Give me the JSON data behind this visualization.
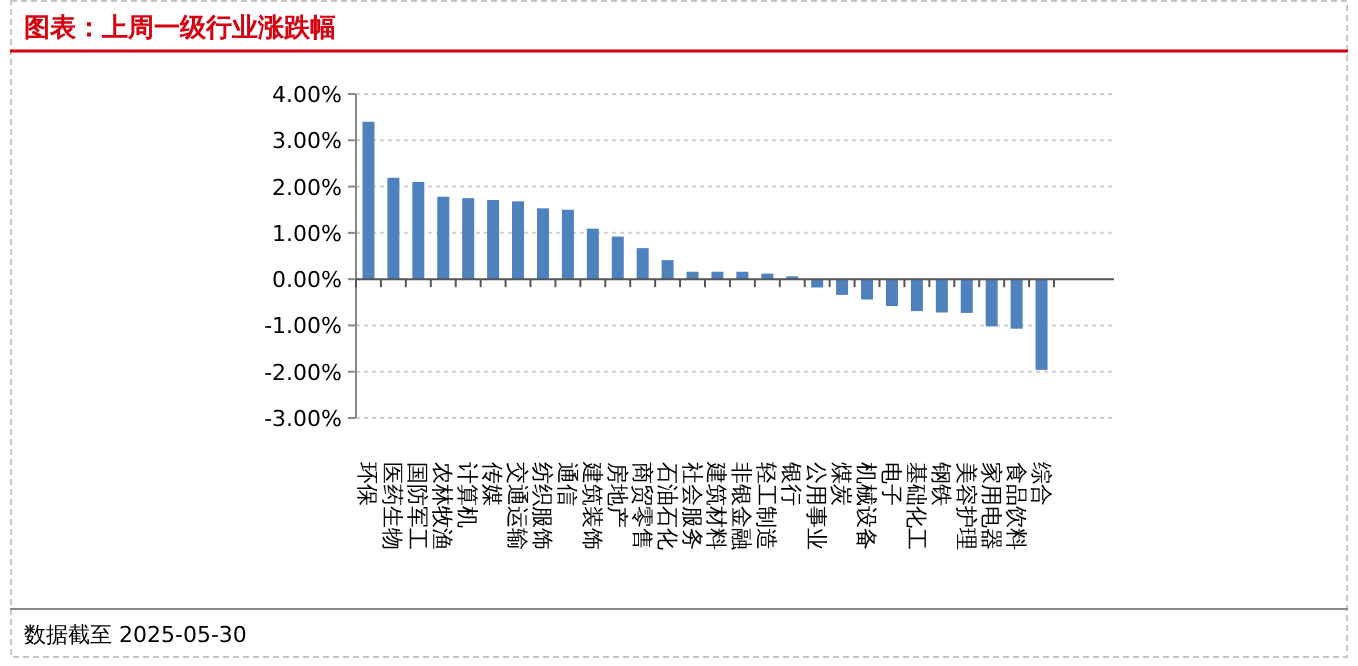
{
  "chart_data": {
    "type": "bar",
    "title": "图表：上周一级行业涨跌幅",
    "categories": [
      "环保",
      "医药生物",
      "国防军工",
      "农林牧渔",
      "计算机",
      "传媒",
      "交通运输",
      "纺织服饰",
      "通信",
      "建筑装饰",
      "房地产",
      "商贸零售",
      "石油石化",
      "社会服务",
      "建筑材料",
      "非银金融",
      "轻工制造",
      "银行",
      "公用事业",
      "煤炭",
      "机械设备",
      "电子",
      "基础化工",
      "钢铁",
      "美容护理",
      "家用电器",
      "食品饮料",
      "综合"
    ],
    "values": [
      3.4,
      2.19,
      2.1,
      1.78,
      1.75,
      1.71,
      1.68,
      1.53,
      1.5,
      1.09,
      0.92,
      0.67,
      0.41,
      0.16,
      0.16,
      0.16,
      0.12,
      0.06,
      -0.18,
      -0.34,
      -0.44,
      -0.58,
      -0.69,
      -0.72,
      -0.73,
      -1.02,
      -1.07,
      -1.96
    ],
    "color": "#4f81bd",
    "ylim": [
      -3,
      4
    ],
    "yticks": [
      {
        "value": -3,
        "label": "-3.00%"
      },
      {
        "value": -2,
        "label": "-2.00%"
      },
      {
        "value": -1,
        "label": "-1.00%"
      },
      {
        "value": 0,
        "label": "0.00%"
      },
      {
        "value": 1,
        "label": "1.00%"
      },
      {
        "value": 2,
        "label": "2.00%"
      },
      {
        "value": 3,
        "label": "3.00%"
      },
      {
        "value": 4,
        "label": "4.00%"
      }
    ],
    "grid": "y",
    "annotations": [
      "数据截至 2025-05-30"
    ]
  }
}
